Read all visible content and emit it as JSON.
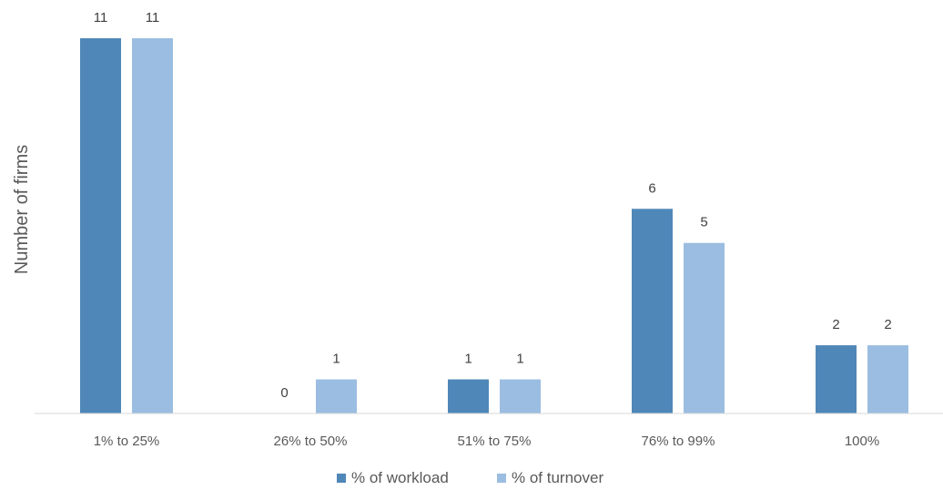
{
  "chart_data": {
    "type": "bar",
    "categories": [
      "1% to 25%",
      "26% to 50%",
      "51% to 75%",
      "76% to 99%",
      "100%"
    ],
    "series": [
      {
        "name": "% of workload",
        "values": [
          11,
          0,
          1,
          6,
          2
        ],
        "color": "#4f87b8"
      },
      {
        "name": "% of turnover",
        "values": [
          11,
          1,
          1,
          5,
          2
        ],
        "color": "#9bbde1"
      }
    ],
    "title": "",
    "xlabel": "",
    "ylabel": "Number of firms",
    "ylim": [
      0,
      11
    ],
    "grid": false,
    "legend_position": "bottom",
    "data_labels": true
  }
}
